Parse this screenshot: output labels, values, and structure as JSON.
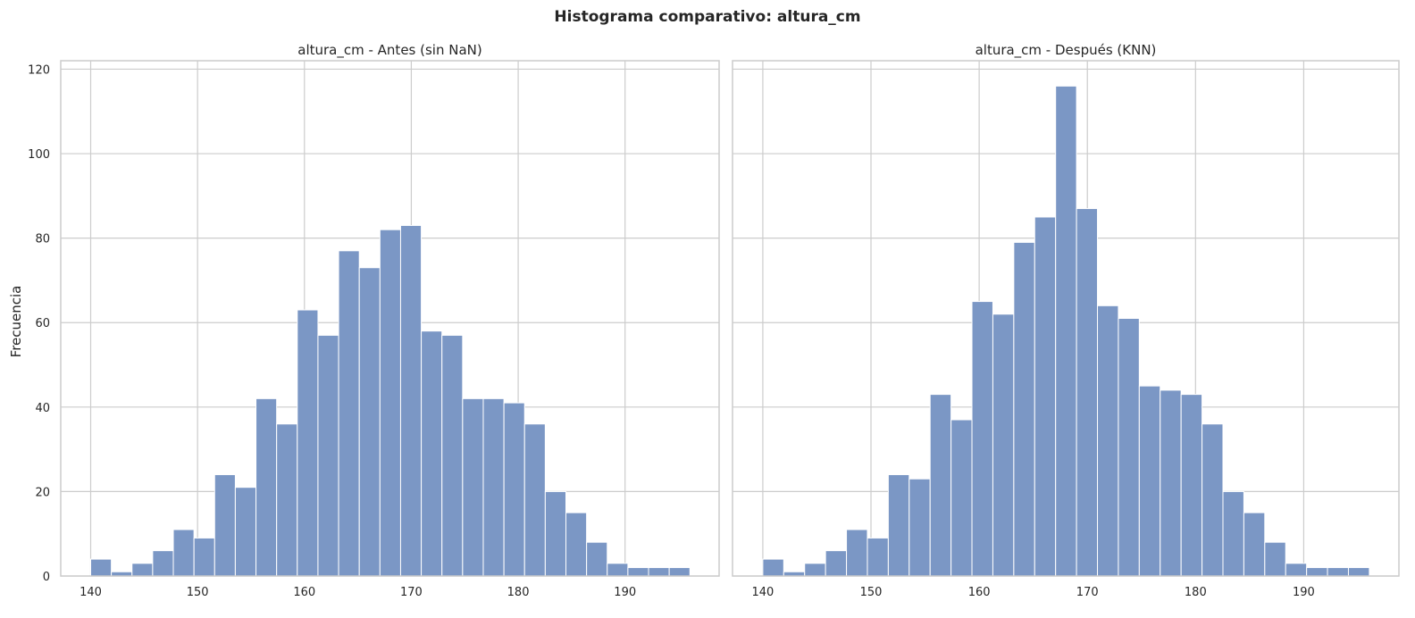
{
  "figure": {
    "suptitle": "Histograma comparativo: altura_cm",
    "ylabel": "Frecuencia",
    "bar_color": "#7b97c5",
    "grid": true
  },
  "chart_data": [
    {
      "type": "bar",
      "title": "altura_cm - Antes (sin NaN)",
      "xlabel": "",
      "ylabel": "Frecuencia",
      "xlim": [
        137.2,
        198.8
      ],
      "ylim": [
        0,
        122
      ],
      "x_ticks": [
        140,
        150,
        160,
        170,
        180,
        190
      ],
      "y_ticks": [
        0,
        20,
        40,
        60,
        80,
        100,
        120
      ],
      "bin_start": 140,
      "bin_width": 1.9333,
      "values": [
        4,
        1,
        3,
        6,
        11,
        9,
        24,
        21,
        42,
        36,
        63,
        57,
        77,
        73,
        82,
        83,
        58,
        57,
        42,
        42,
        41,
        36,
        20,
        15,
        8,
        3,
        2,
        2,
        2
      ]
    },
    {
      "type": "bar",
      "title": "altura_cm - Después (KNN)",
      "xlabel": "",
      "ylabel": "",
      "xlim": [
        137.2,
        198.8
      ],
      "ylim": [
        0,
        122
      ],
      "x_ticks": [
        140,
        150,
        160,
        170,
        180,
        190
      ],
      "y_ticks": [
        0,
        20,
        40,
        60,
        80,
        100,
        120
      ],
      "bin_start": 140,
      "bin_width": 1.9333,
      "values": [
        4,
        1,
        3,
        6,
        11,
        9,
        24,
        23,
        43,
        37,
        65,
        62,
        79,
        85,
        116,
        87,
        64,
        61,
        45,
        44,
        43,
        36,
        20,
        15,
        8,
        3,
        2,
        2,
        2
      ]
    }
  ]
}
